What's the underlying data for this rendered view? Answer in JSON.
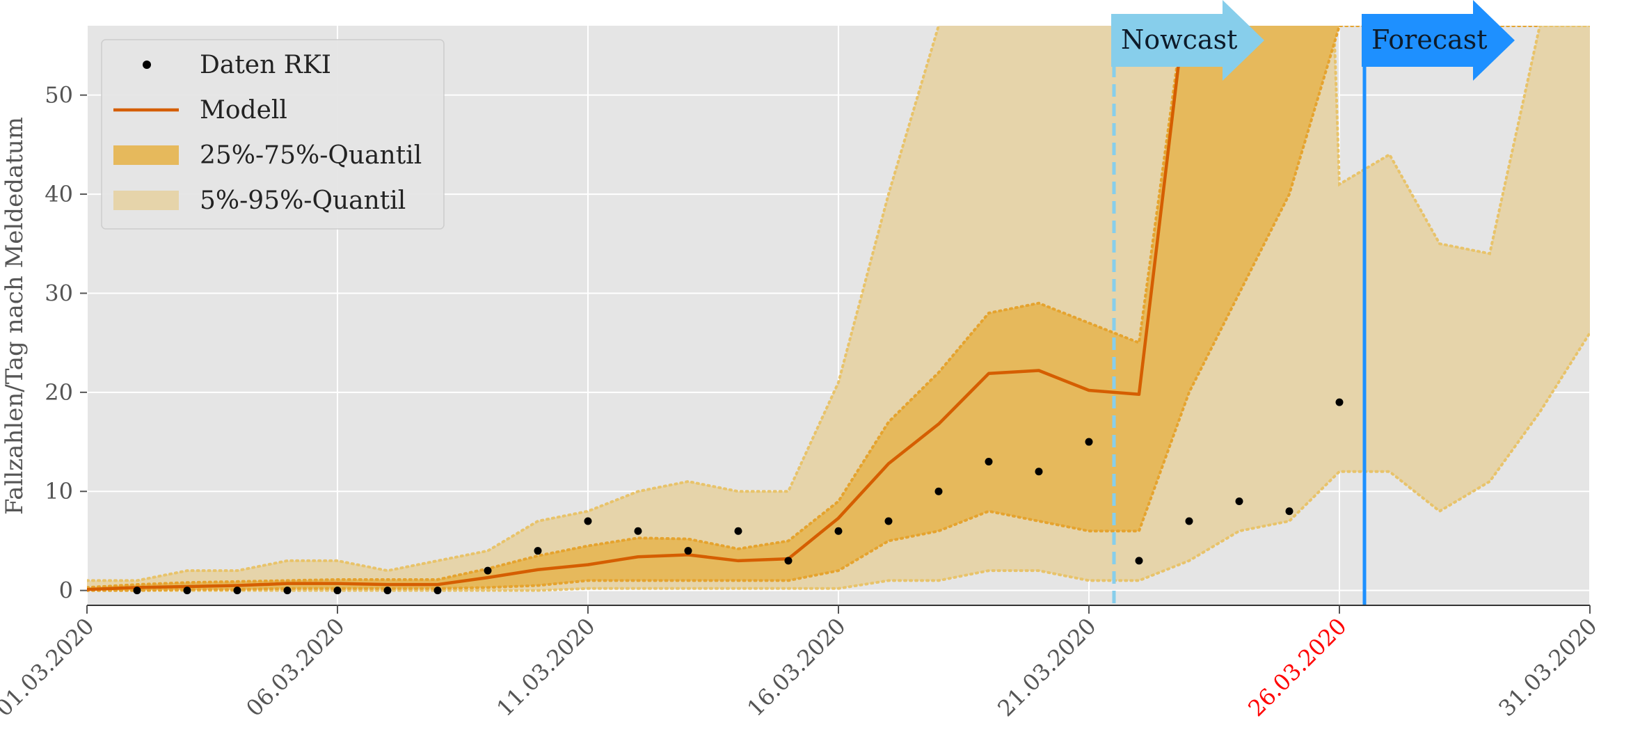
{
  "chart_data": {
    "type": "line",
    "xlabel": "",
    "ylabel": "Fallzahlen/Tag nach Meldedatum",
    "ylim": [
      -1.5,
      57
    ],
    "xlim_days": [
      0,
      30
    ],
    "grid": true,
    "legend_placement": "top-left",
    "x_ticks": [
      {
        "day": 0,
        "label": "01.03.2020",
        "color": "#555555"
      },
      {
        "day": 5,
        "label": "06.03.2020",
        "color": "#555555"
      },
      {
        "day": 10,
        "label": "11.03.2020",
        "color": "#555555"
      },
      {
        "day": 15,
        "label": "16.03.2020",
        "color": "#555555"
      },
      {
        "day": 20,
        "label": "21.03.2020",
        "color": "#555555"
      },
      {
        "day": 25,
        "label": "26.03.2020",
        "color": "#ff0000"
      },
      {
        "day": 30,
        "label": "31.03.2020",
        "color": "#555555"
      }
    ],
    "y_ticks": [
      0,
      10,
      20,
      30,
      40,
      50
    ],
    "legend": [
      {
        "label": "Daten RKI",
        "kind": "dot"
      },
      {
        "label": "Modell",
        "kind": "line"
      },
      {
        "label": "25%-75%-Quantil",
        "kind": "patch-dark"
      },
      {
        "label": "5%-95%-Quantil",
        "kind": "patch-light"
      }
    ],
    "series": [
      {
        "name": "Daten RKI",
        "x": [
          1,
          2,
          3,
          4,
          5,
          6,
          7,
          8,
          9,
          10,
          11,
          12,
          13,
          14,
          15,
          16,
          17,
          18,
          19,
          20,
          21,
          22,
          23,
          24,
          25
        ],
        "values": [
          0,
          0,
          0,
          0,
          0,
          0,
          0,
          2,
          4,
          7,
          6,
          4,
          6,
          3,
          6,
          7,
          10,
          13,
          12,
          15,
          3,
          7,
          9,
          8,
          19
        ]
      },
      {
        "name": "Modell",
        "x": [
          0,
          1,
          2,
          3,
          4,
          5,
          6,
          7,
          8,
          9,
          10,
          11,
          12,
          13,
          14,
          15,
          16,
          17,
          18,
          19,
          20,
          21,
          22
        ],
        "values": [
          0.1,
          0.3,
          0.4,
          0.5,
          0.7,
          0.7,
          0.6,
          0.6,
          1.3,
          2.1,
          2.6,
          3.4,
          3.6,
          3.0,
          3.2,
          7.3,
          12.8,
          16.8,
          21.9,
          22.2,
          20.2,
          19.8,
          62
        ]
      },
      {
        "name": "25%-75%-Quantil",
        "x": [
          0,
          1,
          2,
          3,
          4,
          5,
          6,
          7,
          8,
          9,
          10,
          11,
          12,
          13,
          14,
          15,
          16,
          17,
          18,
          19,
          20,
          21,
          22,
          23,
          24,
          25,
          26,
          27,
          28,
          29
        ],
        "lower": [
          0,
          0,
          0.1,
          0.1,
          0.2,
          0.2,
          0.2,
          0.2,
          0.3,
          0.5,
          1.0,
          1.0,
          1.0,
          1.0,
          1.0,
          2.0,
          5.0,
          6.0,
          8.0,
          7.0,
          6.0,
          6.0,
          20,
          30,
          40,
          57,
          57,
          57,
          57,
          57
        ],
        "upper": [
          0.3,
          0.6,
          0.8,
          0.9,
          1.0,
          1.1,
          1.1,
          1.1,
          2.2,
          3.5,
          4.5,
          5.3,
          5.2,
          4.2,
          5.0,
          9.0,
          17,
          22,
          28,
          29,
          27,
          25,
          62,
          80,
          90,
          100,
          110,
          120,
          130,
          140
        ]
      },
      {
        "name": "5%-95%-Quantil",
        "x": [
          0,
          1,
          2,
          3,
          4,
          5,
          6,
          7,
          8,
          9,
          10,
          11,
          12,
          13,
          14,
          15,
          16,
          17,
          18,
          19,
          20,
          21,
          22,
          23,
          24,
          25,
          26,
          27,
          28,
          29,
          30
        ],
        "lower": [
          0,
          0,
          0,
          0,
          0,
          0,
          0,
          0,
          0,
          0,
          0.2,
          0.2,
          0.2,
          0.2,
          0.2,
          0.2,
          1.0,
          1.0,
          2.0,
          2.0,
          1.0,
          1.0,
          3.0,
          6.0,
          7.0,
          12.0,
          12.0,
          8.0,
          11.0,
          18.0,
          26.0
        ],
        "upper": [
          1.0,
          1.0,
          2.0,
          2.0,
          3.0,
          3.0,
          2.0,
          3.0,
          4.0,
          7.0,
          8.0,
          10.0,
          11.0,
          10.0,
          10.0,
          21.0,
          40.0,
          57.0,
          70.0,
          90,
          110,
          130,
          150,
          170,
          190,
          41,
          44,
          35,
          34,
          57,
          57
        ]
      }
    ],
    "annotations": [
      {
        "label": "Nowcast",
        "day": 20.5,
        "line": "dashed",
        "color": "#87ceeb"
      },
      {
        "label": "Forecast",
        "day": 25.5,
        "line": "solid",
        "color": "#1e90ff"
      }
    ]
  },
  "colors": {
    "plot_bg": "#e5e5e5",
    "grid": "#ffffff",
    "model": "#d55e00",
    "band_dark": "#e6b95c",
    "band_dark_edge": "#e5a32e",
    "band_light": "#e6d4aa",
    "band_light_edge": "#e8c36a",
    "points": "#000000",
    "nowcast": "#87ceeb",
    "forecast": "#1e90ff"
  }
}
